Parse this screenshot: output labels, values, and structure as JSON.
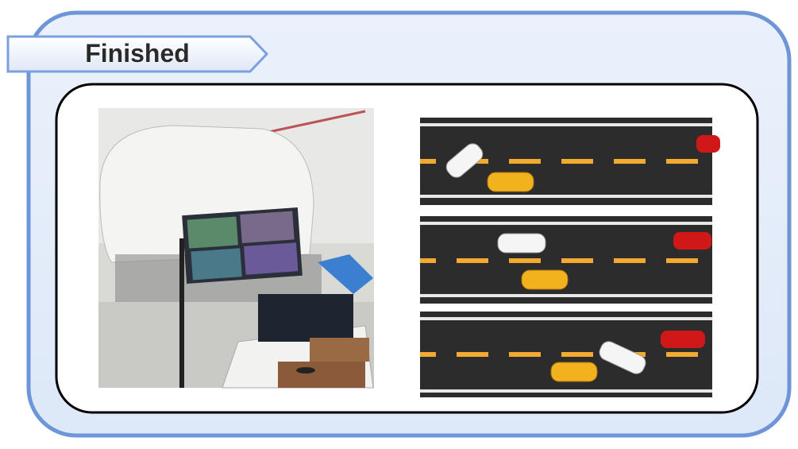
{
  "header": {
    "title": "Finished"
  }
}
